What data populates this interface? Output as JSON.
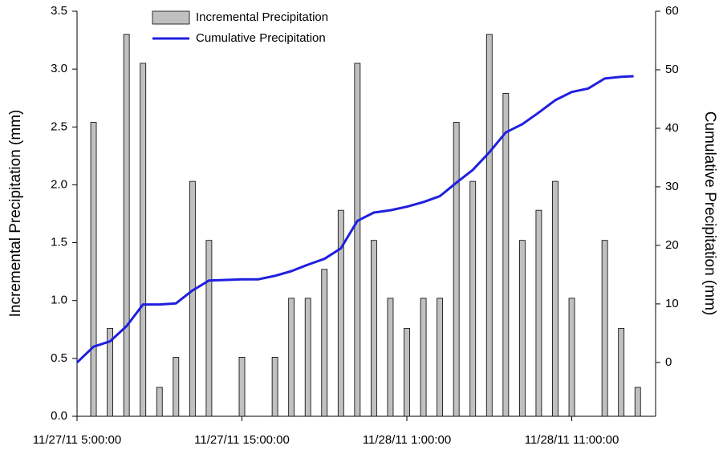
{
  "chart_data": {
    "type": "combo",
    "y_label": "Incremental Precipitation (mm)",
    "y2_label": "Cumulative Precipitation (mm)",
    "xlim": [
      "11/27/11 5:00:00",
      "11/28/11 16:05:00"
    ],
    "xticks": [
      "11/27/11 5:00:00",
      "11/27/11 15:00:00",
      "11/28/11 1:00:00",
      "11/28/11 11:00:00"
    ],
    "ylim": [
      0,
      3.5
    ],
    "yticks": [
      {
        "value": 0,
        "label": "0.0"
      },
      0.5,
      {
        "value": 1,
        "label": "1.0"
      },
      1.5,
      {
        "value": 2,
        "label": "2.0"
      },
      2.5,
      {
        "value": 3,
        "label": "3.0"
      },
      3.5
    ],
    "y2lim": [
      -9.2,
      60
    ],
    "y2ticks": [
      0,
      10,
      20,
      30,
      40,
      50,
      60
    ],
    "legend": "upper left",
    "series": [
      {
        "name": "Incremental Precipitation",
        "type": "bar",
        "color": "#c0c0c0",
        "x": [
          "11/27/11 6:00:00",
          "11/27/11 7:00:00",
          "11/27/11 8:00:00",
          "11/27/11 9:00:00",
          "11/27/11 10:00:00",
          "11/27/11 11:00:00",
          "11/27/11 12:00:00",
          "11/27/11 13:00:00",
          "11/27/11 15:00:00",
          "11/27/11 17:00:00",
          "11/27/11 18:00:00",
          "11/27/11 19:00:00",
          "11/27/11 20:00:00",
          "11/27/11 21:00:00",
          "11/27/11 22:00:00",
          "11/27/11 23:00:00",
          "11/28/11 0:00:00",
          "11/28/11 1:00:00",
          "11/28/11 2:00:00",
          "11/28/11 3:00:00",
          "11/28/11 4:00:00",
          "11/28/11 5:00:00",
          "11/28/11 6:00:00",
          "11/28/11 7:00:00",
          "11/28/11 8:00:00",
          "11/28/11 9:00:00",
          "11/28/11 10:00:00",
          "11/28/11 11:00:00",
          "11/28/11 13:00:00",
          "11/28/11 14:00:00",
          "11/28/11 15:00:00"
        ],
        "values": [
          2.54,
          0.76,
          3.3,
          3.05,
          0.25,
          0.51,
          2.03,
          1.52,
          0.51,
          0.51,
          1.02,
          1.02,
          1.27,
          1.78,
          3.05,
          1.52,
          1.02,
          0.76,
          1.02,
          1.02,
          2.54,
          2.03,
          3.3,
          2.79,
          1.52,
          1.78,
          2.03,
          1.02,
          1.52,
          0.76,
          0.25
        ]
      },
      {
        "name": "Cumulative Precipitation",
        "type": "line",
        "axis": "y2",
        "color": "#1f1fe0",
        "x": [
          "11/27/11 5:00:00",
          "11/27/11 6:00:00",
          "11/27/11 7:00:00",
          "11/27/11 8:00:00",
          "11/27/11 9:00:00",
          "11/27/11 10:00:00",
          "11/27/11 11:00:00",
          "11/27/11 12:00:00",
          "11/27/11 13:00:00",
          "11/27/11 14:00:00",
          "11/27/11 15:00:00",
          "11/27/11 16:00:00",
          "11/27/11 17:00:00",
          "11/27/11 18:00:00",
          "11/27/11 19:00:00",
          "11/27/11 20:00:00",
          "11/27/11 21:00:00",
          "11/27/11 22:00:00",
          "11/27/11 23:00:00",
          "11/28/11 0:00:00",
          "11/28/11 1:00:00",
          "11/28/11 2:00:00",
          "11/28/11 3:00:00",
          "11/28/11 4:00:00",
          "11/28/11 5:00:00",
          "11/28/11 6:00:00",
          "11/28/11 7:00:00",
          "11/28/11 8:00:00",
          "11/28/11 9:00:00",
          "11/28/11 10:00:00",
          "11/28/11 11:00:00",
          "11/28/11 12:00:00",
          "11/28/11 13:00:00",
          "11/28/11 14:00:00",
          "11/28/11 14:45:00"
        ],
        "values": [
          0,
          2.7,
          3.6,
          6.2,
          9.9,
          9.9,
          10.1,
          12.3,
          14.0,
          14.1,
          14.2,
          14.2,
          14.8,
          15.6,
          16.7,
          17.7,
          19.5,
          24.2,
          25.6,
          26.0,
          26.6,
          27.4,
          28.4,
          30.7,
          32.9,
          35.9,
          39.3,
          40.7,
          42.7,
          44.8,
          46.2,
          46.8,
          48.5,
          48.8,
          48.9
        ]
      }
    ]
  }
}
